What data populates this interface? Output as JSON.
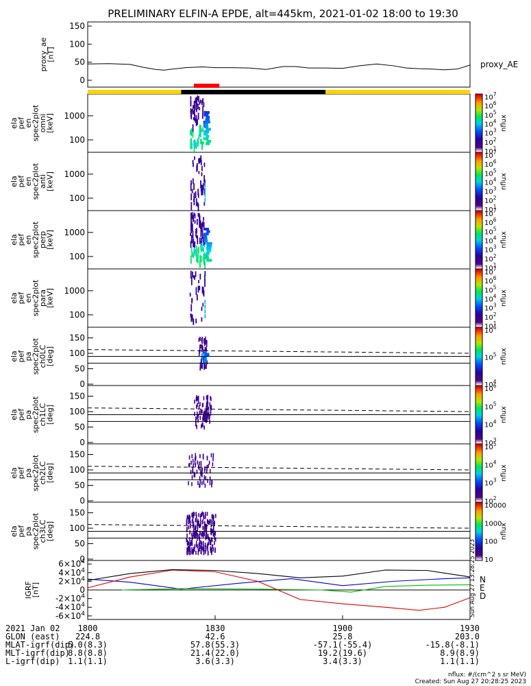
{
  "title": "PRELIMINARY ELFIN-A EPDE, alt=445km, 2021-01-02 18:00 to 19:30",
  "colors": {
    "day_bar": "#ffd400",
    "night_bar": "#000000",
    "science_zone": "#ff0000",
    "igrf_N": "#0000cc",
    "igrf_E": "#00bb00",
    "igrf_D": "#dd0000",
    "igrf_total": "#000000"
  },
  "time_axis": {
    "start": "18:00",
    "end": "19:30",
    "tick_labels": [
      "1800",
      "1830",
      "1900",
      "1930"
    ],
    "tick_minutes": [
      0,
      30,
      60,
      90
    ],
    "day_night": [
      {
        "from_min": 0,
        "to_min": 22,
        "state": "day"
      },
      {
        "from_min": 22,
        "to_min": 56,
        "state": "night"
      },
      {
        "from_min": 56,
        "to_min": 90,
        "state": "day"
      }
    ],
    "science_zone": {
      "from_min": 25,
      "to_min": 31
    }
  },
  "chart_data": [
    {
      "type": "line",
      "ylabel": [
        "proxy_ae",
        "[nT]"
      ],
      "ylim": [
        0,
        150
      ],
      "yticks": [
        "0",
        "50",
        "100",
        "150"
      ],
      "series": [
        {
          "name": "proxy_AE",
          "x_min": [
            0,
            5,
            10,
            13,
            16,
            18,
            20,
            23,
            27,
            30,
            34,
            38,
            42,
            46,
            49,
            52,
            56,
            60,
            64,
            68,
            72,
            75,
            78,
            81,
            84,
            87,
            90
          ],
          "values": [
            45,
            46,
            44,
            36,
            30,
            28,
            31,
            35,
            37,
            35,
            35,
            34,
            30,
            38,
            38,
            34,
            34,
            33,
            40,
            45,
            40,
            34,
            32,
            31,
            29,
            31,
            42
          ]
        }
      ]
    },
    {
      "type": "heatmap",
      "ylabel": [
        "ela",
        "pef",
        "en",
        "spec2plot",
        "omni",
        "[keV]"
      ],
      "yticks": [
        "100",
        "1000"
      ],
      "yscale": "log",
      "colorbar": {
        "label": "nflux",
        "ticks": [
          "10^1",
          "10^2",
          "10^3",
          "10^4",
          "10^5",
          "10^6",
          "10^7"
        ]
      },
      "data_window_min": [
        24.0,
        27.5
      ]
    },
    {
      "type": "heatmap",
      "ylabel": [
        "ela",
        "pef",
        "en",
        "spec2plot",
        "anti",
        "[keV]"
      ],
      "yticks": [
        "100",
        "1000"
      ],
      "yscale": "log",
      "colorbar": {
        "label": "nflux",
        "ticks": [
          "10^1",
          "10^2",
          "10^3",
          "10^4",
          "10^5",
          "10^6",
          "10^7"
        ]
      },
      "data_window_min": [
        24.0,
        27.5
      ]
    },
    {
      "type": "heatmap",
      "ylabel": [
        "ela",
        "pef",
        "en",
        "spec2plot",
        "perp",
        "[keV]"
      ],
      "yticks": [
        "100",
        "1000"
      ],
      "yscale": "log",
      "colorbar": {
        "label": "nflux",
        "ticks": [
          "10^1",
          "10^2",
          "10^3",
          "10^4",
          "10^5",
          "10^6",
          "10^7"
        ]
      },
      "data_window_min": [
        24.0,
        27.5
      ]
    },
    {
      "type": "heatmap",
      "ylabel": [
        "ela",
        "pef",
        "en",
        "spec2plot",
        "para",
        "[keV]"
      ],
      "yticks": [
        "100",
        "1000"
      ],
      "yscale": "log",
      "colorbar": {
        "label": "nflux",
        "ticks": [
          "10^1",
          "10^2",
          "10^3",
          "10^4",
          "10^5",
          "10^6",
          "10^7"
        ]
      },
      "data_window_min": [
        24.0,
        27.5
      ]
    },
    {
      "type": "heatmap",
      "ylabel": [
        "ela",
        "pef",
        "pa",
        "spec2plot",
        "ch0LC",
        "[deg]"
      ],
      "ylim": [
        0,
        180
      ],
      "yticks": [
        "0",
        "50",
        "100",
        "150"
      ],
      "colorbar": {
        "label": "nflux",
        "ticks": [
          "10^4",
          "10^5",
          "10^6"
        ]
      },
      "lc_solid": 68,
      "alc_solid": 90,
      "lc_dashed": [
        112,
        100
      ],
      "data_window_min": [
        26.0,
        28.0
      ]
    },
    {
      "type": "heatmap",
      "ylabel": [
        "ela",
        "pef",
        "pa",
        "spec2plot",
        "ch1LC",
        "[deg]"
      ],
      "ylim": [
        0,
        180
      ],
      "yticks": [
        "0",
        "50",
        "100",
        "150"
      ],
      "colorbar": {
        "label": "nflux",
        "ticks": [
          "10^3",
          "10^4",
          "10^5",
          "10^6"
        ]
      },
      "lc_solid": 68,
      "alc_solid": 90,
      "lc_dashed": [
        112,
        100
      ],
      "data_window_min": [
        25.0,
        29.0
      ]
    },
    {
      "type": "heatmap",
      "ylabel": [
        "ela",
        "pef",
        "pa",
        "spec2plot",
        "ch2LC",
        "[deg]"
      ],
      "ylim": [
        0,
        180
      ],
      "yticks": [
        "0",
        "50",
        "100",
        "150"
      ],
      "colorbar": {
        "label": "nflux",
        "ticks": [
          "10^2",
          "10^3",
          "10^4",
          "10^5"
        ]
      },
      "lc_solid": 68,
      "alc_solid": 90,
      "lc_dashed": [
        112,
        100
      ],
      "data_window_min": [
        23.5,
        29.5
      ]
    },
    {
      "type": "heatmap",
      "ylabel": [
        "ela",
        "pef",
        "pa",
        "spec2plot",
        "ch3LC",
        "[deg]"
      ],
      "ylim": [
        0,
        180
      ],
      "yticks": [
        "0",
        "50",
        "100",
        "150"
      ],
      "colorbar": {
        "label": "nflux",
        "ticks": [
          "10",
          "100",
          "1000",
          "10000"
        ]
      },
      "lc_solid": 68,
      "alc_solid": 90,
      "lc_dashed": [
        112,
        100
      ],
      "data_window_min": [
        23.0,
        30.0
      ]
    },
    {
      "type": "line",
      "ylabel": [
        "IGRF",
        "[nT]"
      ],
      "ylim": [
        -65000,
        65000
      ],
      "yticks": [
        "-6×10^4",
        "-4×10^4",
        "-2×10^4",
        "0",
        "2×10^4",
        "4×10^4",
        "6×10^4"
      ],
      "legend": [
        "N",
        "E",
        "D"
      ],
      "series": [
        {
          "name": "N",
          "x_min": [
            0,
            10,
            22,
            35,
            48,
            60,
            72,
            84,
            90
          ],
          "values": [
            25000,
            18000,
            2000,
            15000,
            26000,
            10000,
            20000,
            26000,
            28000
          ]
        },
        {
          "name": "E",
          "x_min": [
            0,
            8,
            22,
            40,
            55,
            62,
            70,
            80,
            90
          ],
          "values": [
            null,
            0,
            3000,
            2000,
            0,
            -5000,
            8000,
            11000,
            12000
          ]
        },
        {
          "name": "D",
          "x_min": [
            0,
            10,
            20,
            30,
            40,
            50,
            60,
            70,
            78,
            84,
            90
          ],
          "values": [
            5000,
            30000,
            46000,
            42000,
            20000,
            -22000,
            -32000,
            -40000,
            -47000,
            -40000,
            -18000
          ]
        },
        {
          "name": "total",
          "x_min": [
            0,
            10,
            20,
            30,
            40,
            50,
            60,
            70,
            80,
            90
          ],
          "values": [
            22000,
            38000,
            47000,
            45000,
            38000,
            28000,
            32000,
            46000,
            45000,
            30000
          ]
        }
      ]
    }
  ],
  "footer": {
    "rows": [
      {
        "label": "2021 Jan 02",
        "values": [
          "1800",
          "1830",
          "1900",
          "1930"
        ]
      },
      {
        "label": "GLON (east)",
        "values": [
          "224.8",
          "42.6",
          "25.8",
          "203.0"
        ]
      },
      {
        "label": "MLAT-igrf(dip)",
        "values": [
          "5.0(8.3)",
          "57.8(55.3)",
          "-57.1(-55.4)",
          "-15.8(-8.1)"
        ]
      },
      {
        "label": "MLT-igrf(dip)",
        "values": [
          "8.8(8.8)",
          "21.4(22.0)",
          "19.2(19.6)",
          "8.9(8.9)"
        ]
      },
      {
        "label": "L-igrf(dip)",
        "values": [
          "1.1(1.1)",
          "3.6(3.3)",
          "3.4(3.3)",
          "1.1(1.1)"
        ]
      }
    ],
    "units_note": "nflux: #/(cm^2 s sr MeV)",
    "created": "Created: Sun Aug 27 20:28:25 2023",
    "side_stamp": "Sun Aug 27 13:28:25 2023"
  }
}
